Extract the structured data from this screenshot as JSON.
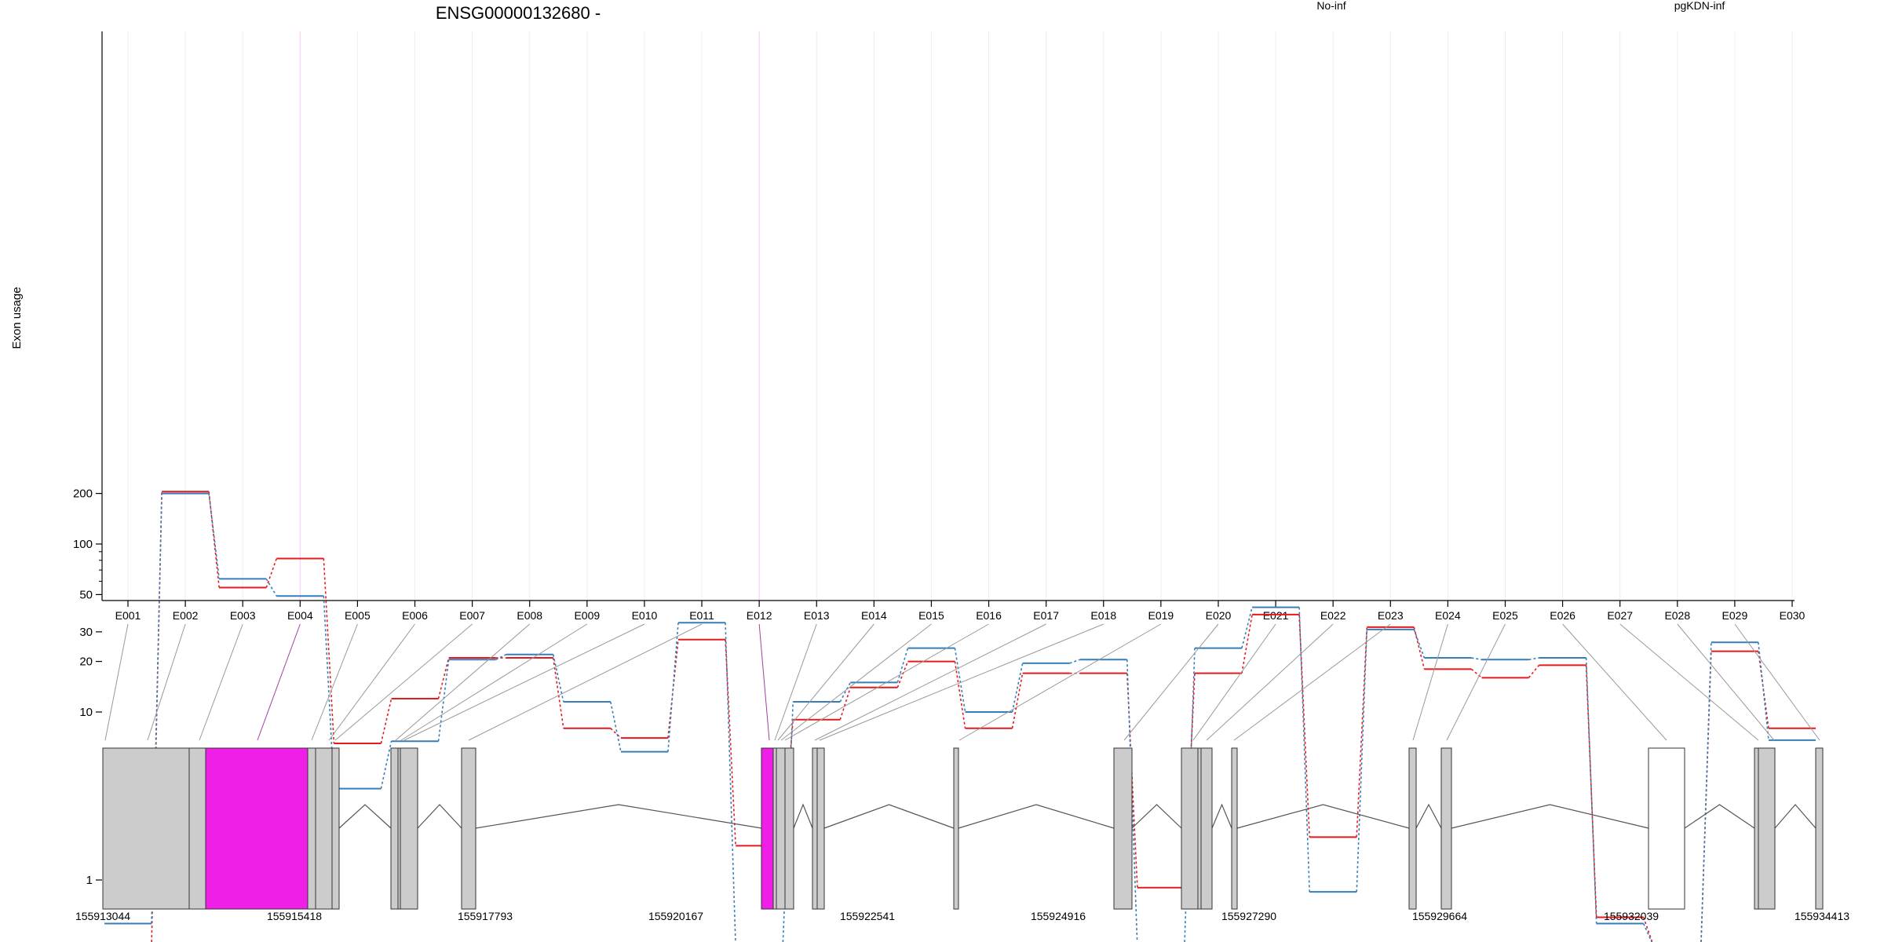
{
  "chart_data": {
    "type": "line",
    "title": "ENSG00000132680 -",
    "ylabel": "Exon usage",
    "xlabel": "",
    "yscale": "log",
    "ylim": [
      0.4,
      250
    ],
    "yticks": [
      1,
      10,
      20,
      30,
      50,
      100,
      200
    ],
    "grid": true,
    "legend_position": "top",
    "categories": [
      "E001",
      "E002",
      "E003",
      "E004",
      "E005",
      "E006",
      "E007",
      "E008",
      "E009",
      "E010",
      "E011",
      "E012",
      "E013",
      "E014",
      "E015",
      "E016",
      "E017",
      "E018",
      "E019",
      "E020",
      "E021",
      "E022",
      "E023",
      "E024",
      "E025",
      "E026",
      "E027",
      "E028",
      "E029",
      "E030"
    ],
    "series": [
      {
        "name": "No-inf",
        "color": "#e41a1c",
        "values": [
          0.4,
          205,
          55,
          82,
          6.5,
          12,
          21,
          21,
          8,
          7,
          27,
          1.6,
          9,
          14,
          20,
          8,
          17,
          17,
          0.9,
          17,
          38,
          1.8,
          32,
          18,
          16,
          19,
          0.6,
          0.4,
          23,
          8
        ]
      },
      {
        "name": "pgKDN-inf",
        "color": "#377eb8",
        "values": [
          0.55,
          200,
          62,
          49,
          3.5,
          6.7,
          20.5,
          22,
          11.5,
          5.8,
          34,
          0.4,
          11.5,
          15,
          24,
          10,
          19.5,
          20.5,
          0.4,
          24,
          42,
          0.85,
          31,
          21,
          20.5,
          21,
          0.55,
          0.4,
          26,
          6.8
        ]
      }
    ],
    "highlight_exons": [
      "E004",
      "E012"
    ],
    "highlight_color": "#f01fe8",
    "gene_axis_labels": [
      "155913044",
      "155915418",
      "155917793",
      "155920167",
      "155922541",
      "155924916",
      "155927290",
      "155929664",
      "155932039",
      "155934413"
    ]
  }
}
